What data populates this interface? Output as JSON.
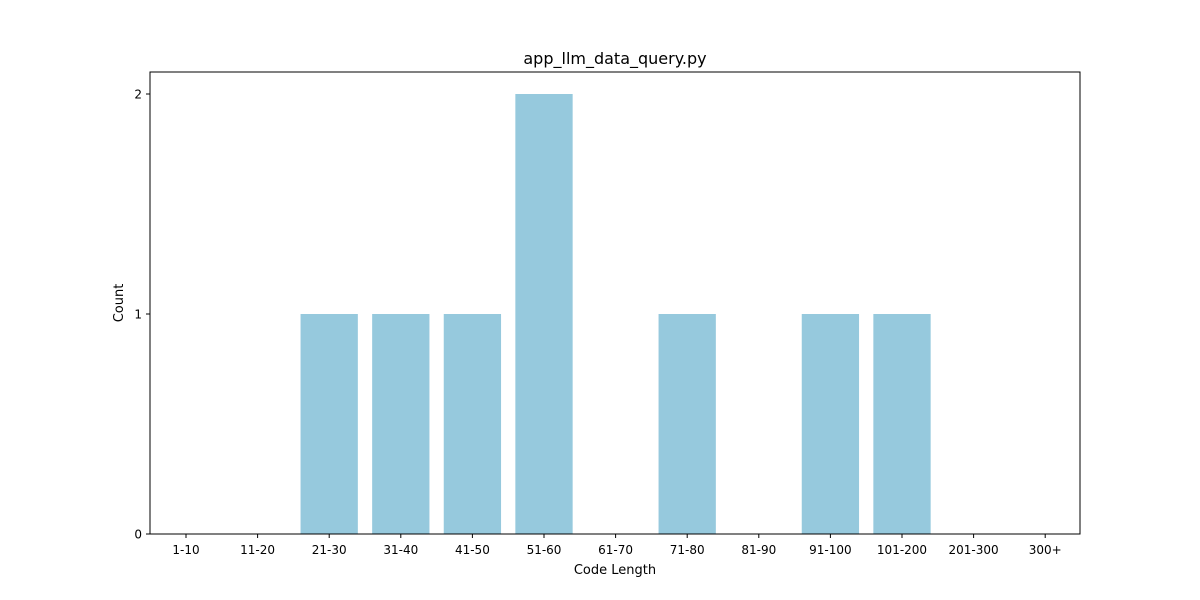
{
  "chart_data": {
    "type": "bar",
    "title": "app_llm_data_query.py",
    "xlabel": "Code Length",
    "ylabel": "Count",
    "categories": [
      "1-10",
      "11-20",
      "21-30",
      "31-40",
      "41-50",
      "51-60",
      "61-70",
      "71-80",
      "81-90",
      "91-100",
      "101-200",
      "201-300",
      "300+"
    ],
    "values": [
      0,
      0,
      1,
      1,
      1,
      2,
      0,
      1,
      0,
      1,
      1,
      0,
      0
    ],
    "yticks": [
      0,
      1,
      2
    ],
    "ylim": [
      0,
      2.1
    ],
    "grid": false,
    "bar_color": "#96c9dd"
  }
}
